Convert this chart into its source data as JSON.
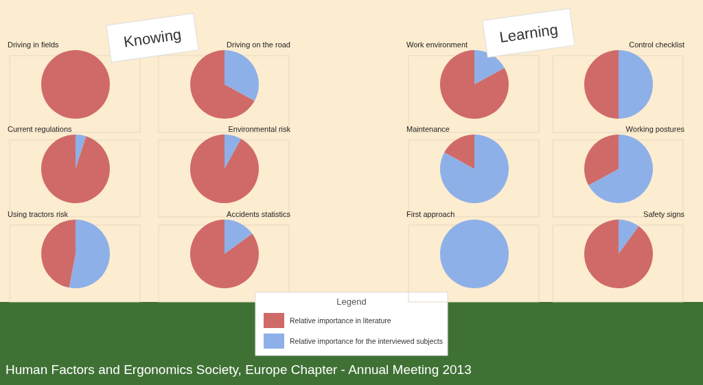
{
  "chart_data": [
    {
      "type": "pie",
      "title": "Driving in fields",
      "values": [
        100,
        0
      ],
      "colors": [
        "#d06a68",
        "#8eb0e8"
      ],
      "annotations": [
        "Knowing",
        "Human Factors and Ergonomics Society, Europe Chapter - Annual Meeting 2013"
      ]
    },
    {
      "type": "pie",
      "title": "Driving on the road",
      "values": [
        67,
        33
      ],
      "colors": [
        "#d06a68",
        "#8eb0e8"
      ]
    },
    {
      "type": "pie",
      "title": "Current regulations",
      "values": [
        95,
        5
      ],
      "colors": [
        "#d06a68",
        "#8eb0e8"
      ]
    },
    {
      "type": "pie",
      "title": "Environmental risk",
      "values": [
        92,
        8
      ],
      "colors": [
        "#d06a68",
        "#8eb0e8"
      ]
    },
    {
      "type": "pie",
      "title": "Using tractors risk",
      "values": [
        47,
        53
      ],
      "colors": [
        "#d06a68",
        "#8eb0e8"
      ]
    },
    {
      "type": "pie",
      "title": "Accidents statistics",
      "categories": [
        "Relative importance in literature",
        "Relative importance for the interviewed subjects"
      ],
      "values": [
        85,
        15
      ],
      "colors": [
        "#d06a68",
        "#8eb0e8"
      ],
      "legend": "bottom right",
      "legend_title": "Legend"
    },
    {
      "type": "pie",
      "title": "Work environment",
      "values": [
        83,
        17
      ],
      "colors": [
        "#d06a68",
        "#8eb0e8"
      ],
      "annotations": [
        "Learning"
      ]
    },
    {
      "type": "pie",
      "title": "Control checklist",
      "values": [
        50,
        50
      ],
      "colors": [
        "#d06a68",
        "#8eb0e8"
      ]
    },
    {
      "type": "pie",
      "title": "Maintenance",
      "values": [
        17,
        83
      ],
      "colors": [
        "#d06a68",
        "#8eb0e8"
      ]
    },
    {
      "type": "pie",
      "title": "Working postures",
      "values": [
        33,
        67
      ],
      "colors": [
        "#d06a68",
        "#8eb0e8"
      ]
    },
    {
      "type": "pie",
      "title": "First approach",
      "values": [
        0,
        100
      ],
      "colors": [
        "#d06a68",
        "#8eb0e8"
      ]
    },
    {
      "type": "pie",
      "title": "Safety signs",
      "values": [
        90,
        10
      ],
      "colors": [
        "#d06a68",
        "#8eb0e8"
      ]
    }
  ]
}
